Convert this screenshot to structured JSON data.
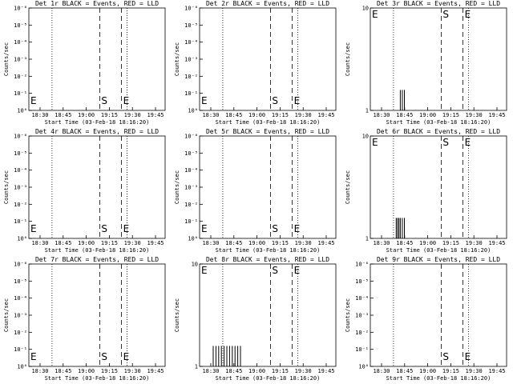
{
  "chart_data": [
    {
      "type": "line",
      "title": "Det 1r BLACK = Events, RED = LLD",
      "scale": "log",
      "ytick_labels": [
        "10⁰",
        "10⁻¹",
        "10⁻²",
        "10⁻³",
        "10⁻⁴",
        "10⁻⁵",
        "10⁻⁶"
      ],
      "ylabel": "Counts/sec",
      "xtick_labels": [
        "18:30",
        "18:45",
        "19:00",
        "19:15",
        "19:30",
        "19:45"
      ],
      "xlabel": "Start Time (03-Feb-18 18:16:20)",
      "markers": [
        {
          "label": "E",
          "x": 0
        },
        {
          "label": "S",
          "x": 0.52
        },
        {
          "label": "E",
          "x": 0.68
        }
      ],
      "spikes": []
    },
    {
      "type": "line",
      "title": "Det 2r BLACK = Events, RED = LLD",
      "scale": "log",
      "ytick_labels": [
        "10⁰",
        "10⁻¹",
        "10⁻²",
        "10⁻³",
        "10⁻⁴",
        "10⁻⁵",
        "10⁻⁶"
      ],
      "ylabel": "Counts/sec",
      "xtick_labels": [
        "18:30",
        "18:45",
        "19:00",
        "19:15",
        "19:30",
        "19:45"
      ],
      "xlabel": "Start Time (03-Feb-18 18:16:20)",
      "markers": [
        {
          "label": "E",
          "x": 0
        },
        {
          "label": "S",
          "x": 0.52
        },
        {
          "label": "E",
          "x": 0.68
        }
      ],
      "spikes": []
    },
    {
      "type": "line",
      "title": "Det 3r BLACK = Events, RED = LLD",
      "scale": "linear",
      "ytick_labels": [
        "1",
        "10"
      ],
      "ylabel": "Counts/sec",
      "xtick_labels": [
        "18:30",
        "18:45",
        "19:00",
        "19:15",
        "19:30",
        "19:45"
      ],
      "xlabel": "Start Time (03-Feb-18 18:16:20)",
      "markers": [
        {
          "label": "E",
          "x": 0
        },
        {
          "label": "S",
          "x": 0.52
        },
        {
          "label": "E",
          "x": 0.68
        }
      ],
      "spikes": [
        {
          "x": 0.22,
          "y": 2
        },
        {
          "x": 0.235,
          "y": 2
        },
        {
          "x": 0.25,
          "y": 2
        }
      ]
    },
    {
      "type": "line",
      "title": "Det 4r BLACK = Events, RED = LLD",
      "scale": "log",
      "ytick_labels": [
        "10⁰",
        "10⁻¹",
        "10⁻²",
        "10⁻³",
        "10⁻⁴",
        "10⁻⁵",
        "10⁻⁶"
      ],
      "ylabel": "Counts/sec",
      "xtick_labels": [
        "18:30",
        "18:45",
        "19:00",
        "19:15",
        "19:30",
        "19:45"
      ],
      "xlabel": "Start Time (03-Feb-18 18:16:20)",
      "markers": [
        {
          "label": "E",
          "x": 0
        },
        {
          "label": "S",
          "x": 0.52
        },
        {
          "label": "E",
          "x": 0.68
        }
      ],
      "spikes": []
    },
    {
      "type": "line",
      "title": "Det 5r BLACK = Events, RED = LLD",
      "scale": "log",
      "ytick_labels": [
        "10⁰",
        "10⁻¹",
        "10⁻²",
        "10⁻³",
        "10⁻⁴",
        "10⁻⁵",
        "10⁻⁶"
      ],
      "ylabel": "Counts/sec",
      "xtick_labels": [
        "18:30",
        "18:45",
        "19:00",
        "19:15",
        "19:30",
        "19:45"
      ],
      "xlabel": "Start Time (03-Feb-18 18:16:20)",
      "markers": [
        {
          "label": "E",
          "x": 0
        },
        {
          "label": "S",
          "x": 0.52
        },
        {
          "label": "E",
          "x": 0.68
        }
      ],
      "spikes": []
    },
    {
      "type": "line",
      "title": "Det 6r BLACK = Events, RED = LLD",
      "scale": "linear",
      "ytick_labels": [
        "1",
        "10"
      ],
      "ylabel": "Counts/sec",
      "xtick_labels": [
        "18:30",
        "18:45",
        "19:00",
        "19:15",
        "19:30",
        "19:45"
      ],
      "xlabel": "Start Time (03-Feb-18 18:16:20)",
      "markers": [
        {
          "label": "E",
          "x": 0
        },
        {
          "label": "S",
          "x": 0.52
        },
        {
          "label": "E",
          "x": 0.68
        }
      ],
      "spikes": [
        {
          "x": 0.19,
          "y": 2
        },
        {
          "x": 0.2,
          "y": 2
        },
        {
          "x": 0.21,
          "y": 2
        },
        {
          "x": 0.22,
          "y": 2
        },
        {
          "x": 0.235,
          "y": 2
        },
        {
          "x": 0.25,
          "y": 2
        }
      ]
    },
    {
      "type": "line",
      "title": "Det 7r BLACK = Events, RED = LLD",
      "scale": "log",
      "ytick_labels": [
        "10⁰",
        "10⁻¹",
        "10⁻²",
        "10⁻³",
        "10⁻⁴",
        "10⁻⁵",
        "10⁻⁶"
      ],
      "ylabel": "Counts/sec",
      "xtick_labels": [
        "18:30",
        "18:45",
        "19:00",
        "19:15",
        "19:30",
        "19:45"
      ],
      "xlabel": "Start Time (03-Feb-18 18:16:20)",
      "markers": [
        {
          "label": "E",
          "x": 0
        },
        {
          "label": "S",
          "x": 0.52
        },
        {
          "label": "E",
          "x": 0.68
        }
      ],
      "spikes": []
    },
    {
      "type": "line",
      "title": "Det 8r BLACK = Events, RED = LLD",
      "scale": "linear",
      "ytick_labels": [
        "1",
        "10"
      ],
      "ylabel": "Counts/sec",
      "xtick_labels": [
        "18:30",
        "18:45",
        "19:00",
        "19:15",
        "19:30",
        "19:45"
      ],
      "xlabel": "Start Time (03-Feb-18 18:16:20)",
      "markers": [
        {
          "label": "E",
          "x": 0
        },
        {
          "label": "S",
          "x": 0.52
        },
        {
          "label": "E",
          "x": 0.68
        }
      ],
      "spikes": [
        {
          "x": 0.1,
          "y": 2
        },
        {
          "x": 0.12,
          "y": 2
        },
        {
          "x": 0.14,
          "y": 2
        },
        {
          "x": 0.16,
          "y": 2
        },
        {
          "x": 0.18,
          "y": 2
        },
        {
          "x": 0.2,
          "y": 2
        },
        {
          "x": 0.22,
          "y": 2
        },
        {
          "x": 0.24,
          "y": 2
        },
        {
          "x": 0.26,
          "y": 2
        },
        {
          "x": 0.28,
          "y": 2
        },
        {
          "x": 0.3,
          "y": 2
        }
      ]
    },
    {
      "type": "line",
      "title": "Det 9r BLACK = Events, RED = LLD",
      "scale": "log",
      "ytick_labels": [
        "10⁰",
        "10⁻¹",
        "10⁻²",
        "10⁻³",
        "10⁻⁴",
        "10⁻⁵",
        "10⁻⁶"
      ],
      "ylabel": "Counts/sec",
      "xtick_labels": [
        "18:30",
        "18:45",
        "19:00",
        "19:15",
        "19:30",
        "19:45"
      ],
      "xlabel": "Start Time (03-Feb-18 18:16:20)",
      "markers": [
        {
          "label": "S",
          "x": 0.52
        },
        {
          "label": "E",
          "x": 0.68
        }
      ],
      "spikes": []
    }
  ]
}
